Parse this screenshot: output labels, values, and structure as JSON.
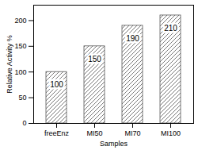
{
  "chart_data": {
    "type": "bar",
    "x_label": "Samples",
    "y_label": "Relative Activity %",
    "categories": [
      "freeEnz",
      "MI50",
      "MI70",
      "MI100"
    ],
    "values": [
      100,
      150,
      190,
      210
    ],
    "color": "#555555",
    "ylim": [
      0,
      230
    ],
    "yticks": [
      0,
      50,
      100,
      150,
      200
    ],
    "data_labels": true
  }
}
